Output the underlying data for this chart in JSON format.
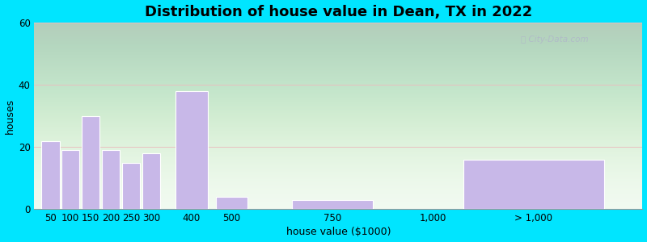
{
  "title": "Distribution of house value in Dean, TX in 2022",
  "xlabel": "house value ($1000)",
  "ylabel": "houses",
  "bar_color": "#c8b8e8",
  "bar_edgecolor": "#ffffff",
  "background_outer": "#00e5ff",
  "ylim": [
    0,
    60
  ],
  "yticks": [
    0,
    20,
    40,
    60
  ],
  "grid_color": "#e8c0c0",
  "title_fontsize": 13,
  "label_fontsize": 9,
  "tick_fontsize": 8.5,
  "xtick_labels": [
    "50",
    "100",
    "150",
    "200",
    "250",
    "300",
    "400",
    "500",
    "750",
    "1,000",
    "> 1,000"
  ],
  "xtick_positions": [
    50,
    100,
    150,
    200,
    250,
    300,
    400,
    500,
    750,
    1000,
    1250
  ],
  "bar_centers": [
    50,
    100,
    150,
    200,
    250,
    300,
    400,
    500,
    750,
    1000,
    1250
  ],
  "bar_widths": [
    45,
    45,
    45,
    45,
    45,
    45,
    80,
    80,
    200,
    150,
    350
  ],
  "values": [
    22,
    19,
    30,
    19,
    15,
    18,
    38,
    4,
    3,
    0,
    16
  ],
  "xlim_left": 10,
  "xlim_right": 1520
}
